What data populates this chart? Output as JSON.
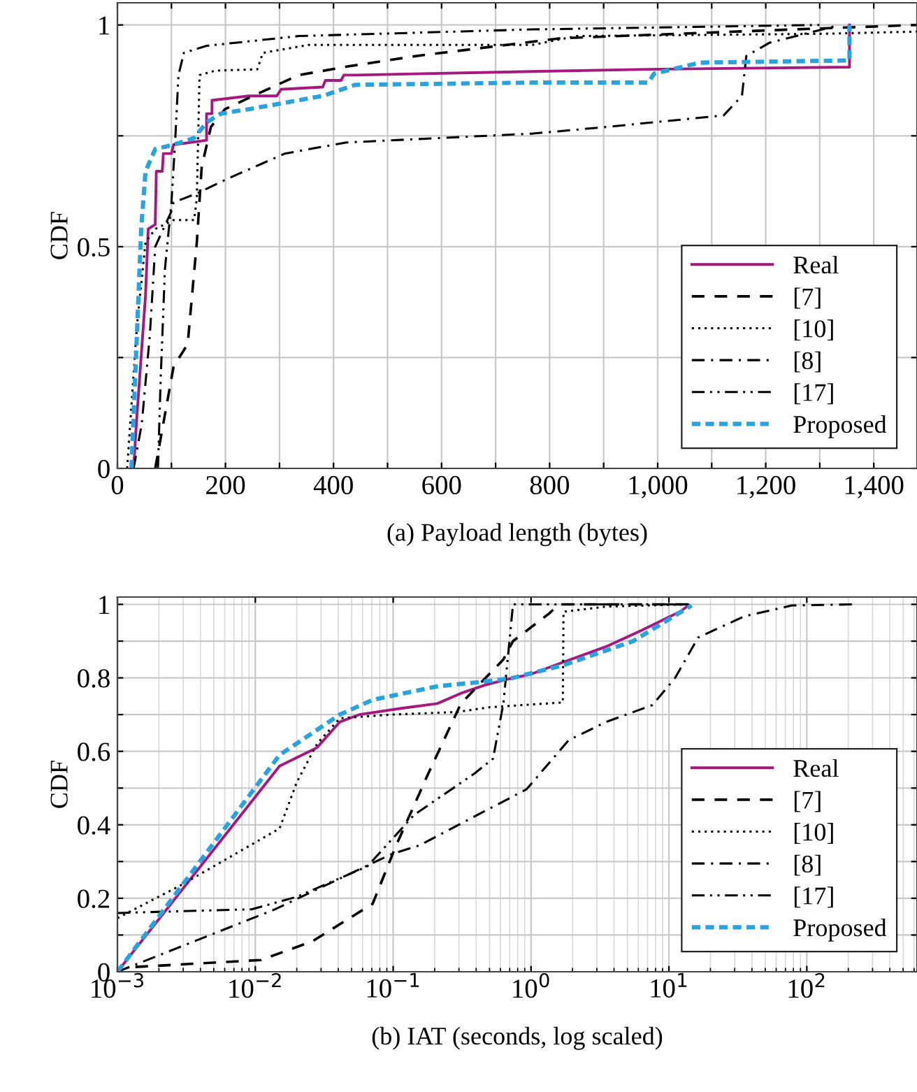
{
  "chart_data": [
    {
      "type": "line",
      "xlabel": "(a) Payload length (bytes)",
      "ylabel": "CDF",
      "xlim": [
        0,
        1480
      ],
      "ylim": [
        0,
        1.05
      ],
      "xticks": [
        0,
        {
          "value": 100,
          "label": null
        },
        200,
        {
          "value": 300,
          "label": null
        },
        400,
        {
          "value": 500,
          "label": null
        },
        600,
        {
          "value": 700,
          "label": null
        },
        800,
        {
          "value": 900,
          "label": null
        },
        {
          "value": 1000,
          "label": "1,000"
        },
        {
          "value": 1100,
          "label": null
        },
        {
          "value": 1200,
          "label": "1,200"
        },
        {
          "value": 1300,
          "label": null
        },
        {
          "value": 1400,
          "label": "1,400"
        }
      ],
      "yticks": [
        0,
        {
          "value": 0.25,
          "label": null
        },
        0.5,
        {
          "value": 0.75,
          "label": null
        },
        1
      ],
      "grid": true,
      "legend": "lower right",
      "series": [
        {
          "name": "Real",
          "color": "#a6177f",
          "line_style": "solid",
          "x": [
            25,
            31,
            35,
            52,
            57,
            70,
            72,
            83,
            85,
            100,
            104,
            165,
            165,
            175,
            175,
            243,
            295,
            303,
            380,
            385,
            414,
            419,
            440,
            768,
            983,
            1355,
            1355
          ],
          "values": [
            0,
            0.02,
            0.1,
            0.39,
            0.54,
            0.55,
            0.67,
            0.67,
            0.71,
            0.71,
            0.73,
            0.74,
            0.8,
            0.8,
            0.83,
            0.84,
            0.84,
            0.855,
            0.86,
            0.875,
            0.875,
            0.887,
            0.887,
            0.895,
            0.9,
            0.905,
            1.0
          ]
        },
        {
          "name": "[7]",
          "color": "#000000",
          "line_style": "dashed",
          "x": [
            70,
            104,
            130,
            147,
            156,
            173,
            199,
            251,
            336,
            424,
            553,
            820,
            1252,
            1480
          ],
          "values": [
            0,
            0.23,
            0.28,
            0.51,
            0.68,
            0.77,
            0.81,
            0.84,
            0.887,
            0.906,
            0.93,
            0.97,
            0.99,
            1.0
          ]
        },
        {
          "name": "[10]",
          "color": "#000000",
          "line_style": "dotted",
          "x": [
            18,
            36,
            52,
            70,
            104,
            142,
            147,
            152,
            181,
            259,
            269,
            354,
            768,
            850,
            1300,
            1480
          ],
          "values": [
            0,
            0.32,
            0.51,
            0.54,
            0.56,
            0.56,
            0.61,
            0.887,
            0.897,
            0.9,
            0.937,
            0.955,
            0.955,
            0.975,
            0.98,
            0.985
          ]
        },
        {
          "name": "[8]",
          "color": "#000000",
          "line_style": "dashdot",
          "x": [
            30,
            45,
            60,
            70,
            100,
            104,
            147,
            207,
            310,
            424,
            768,
            905,
            1122,
            1156,
            1164,
            1207,
            1337
          ],
          "values": [
            0,
            0.1,
            0.3,
            0.5,
            0.58,
            0.6,
            0.62,
            0.655,
            0.71,
            0.735,
            0.755,
            0.77,
            0.796,
            0.84,
            0.93,
            0.96,
            1.0
          ]
        },
        {
          "name": "[17]",
          "color": "#000000",
          "line_style": "dashdotdot",
          "x": [
            75,
            80,
            88,
            100,
            107,
            113,
            123,
            165,
            336,
            768,
            1300
          ],
          "values": [
            0,
            0.2,
            0.45,
            0.6,
            0.74,
            0.887,
            0.937,
            0.953,
            0.975,
            0.99,
            1.0
          ]
        },
        {
          "name": "Proposed",
          "color": "#29a3e0",
          "line_style": "dashed",
          "x": [
            26,
            44,
            52,
            70,
            104,
            142,
            165,
            191,
            243,
            380,
            440,
            768,
            983,
            993,
            1078,
            1355,
            1355
          ],
          "values": [
            0,
            0.54,
            0.67,
            0.72,
            0.73,
            0.745,
            0.78,
            0.8,
            0.81,
            0.84,
            0.865,
            0.87,
            0.87,
            0.89,
            0.915,
            0.92,
            1.0
          ]
        }
      ]
    },
    {
      "type": "line",
      "xlabel": "(b) IAT (seconds, log scaled)",
      "ylabel": "CDF",
      "log": "x",
      "xlim": [
        0.001,
        630
      ],
      "ylim": [
        0,
        1.02
      ],
      "xticks": [
        {
          "value": 0.001,
          "label": "10$^{−3}$"
        },
        {
          "value": 0.01,
          "label": "10$^{−2}$"
        },
        {
          "value": 0.1,
          "label": "10$^{−1}$"
        },
        {
          "value": 1,
          "label": "10$^{0}$"
        },
        {
          "value": 10,
          "label": "10$^{1}$"
        },
        {
          "value": 100,
          "label": "10$^{2}$"
        }
      ],
      "yticks": [
        0,
        {
          "value": 0.1,
          "label": null
        },
        0.2,
        {
          "value": 0.3,
          "label": null
        },
        0.4,
        {
          "value": 0.5,
          "label": null
        },
        0.6,
        {
          "value": 0.7,
          "label": null
        },
        0.8,
        {
          "value": 0.9,
          "label": null
        },
        1
      ],
      "grid": true,
      "legend": "lower right",
      "series": [
        {
          "name": "Real",
          "color": "#a6177f",
          "line_style": "solid",
          "x": [
            0.001,
            0.015,
            0.028,
            0.041,
            0.057,
            0.114,
            0.209,
            0.31,
            0.46,
            0.67,
            1.0,
            1.48,
            3.5,
            6.4,
            12,
            13.9
          ],
          "values": [
            0,
            0.56,
            0.61,
            0.68,
            0.7,
            0.717,
            0.73,
            0.758,
            0.78,
            0.796,
            0.81,
            0.834,
            0.885,
            0.93,
            0.98,
            0.997
          ]
        },
        {
          "name": "[7]",
          "color": "#000000",
          "line_style": "dashed",
          "x": [
            0.00135,
            0.011,
            0.026,
            0.071,
            0.104,
            0.18,
            0.31,
            0.63,
            0.74,
            1.35,
            1.6,
            14
          ],
          "values": [
            0.013,
            0.032,
            0.083,
            0.185,
            0.34,
            0.54,
            0.73,
            0.85,
            0.9,
            0.975,
            1.0,
            1.0
          ]
        },
        {
          "name": "[10]",
          "color": "#000000",
          "line_style": "dotted",
          "x": [
            0.001,
            0.0029,
            0.015,
            0.02,
            0.028,
            0.041,
            0.097,
            0.29,
            0.5,
            1.7,
            1.72,
            3.5,
            13.9
          ],
          "values": [
            0.146,
            0.236,
            0.39,
            0.516,
            0.62,
            0.69,
            0.7,
            0.707,
            0.72,
            0.733,
            0.98,
            0.994,
            1.0
          ]
        },
        {
          "name": "[8]",
          "color": "#000000",
          "line_style": "dashdot",
          "x": [
            0.001,
            0.0139,
            0.097,
            0.155,
            0.93,
            1.87,
            3.5,
            7.6,
            11.1,
            16.3,
            35.5,
            78,
            214
          ],
          "values": [
            0,
            0.17,
            0.32,
            0.344,
            0.497,
            0.63,
            0.68,
            0.726,
            0.8,
            0.91,
            0.968,
            0.997,
            1.0
          ]
        },
        {
          "name": "[17]",
          "color": "#000000",
          "line_style": "dashdotdot",
          "x": [
            0.001,
            0.0094,
            0.02,
            0.065,
            0.142,
            0.39,
            0.53,
            0.63,
            0.74,
            14
          ],
          "values": [
            0.16,
            0.17,
            0.204,
            0.287,
            0.427,
            0.54,
            0.58,
            0.73,
            1.0,
            1.0
          ]
        },
        {
          "name": "Proposed",
          "color": "#29a3e0",
          "line_style": "dashed",
          "x": [
            0.001,
            0.015,
            0.041,
            0.071,
            0.209,
            0.46,
            0.74,
            1.7,
            5.5,
            14.6
          ],
          "values": [
            0,
            0.59,
            0.7,
            0.74,
            0.777,
            0.79,
            0.8,
            0.834,
            0.9,
            0.997
          ]
        }
      ]
    }
  ]
}
